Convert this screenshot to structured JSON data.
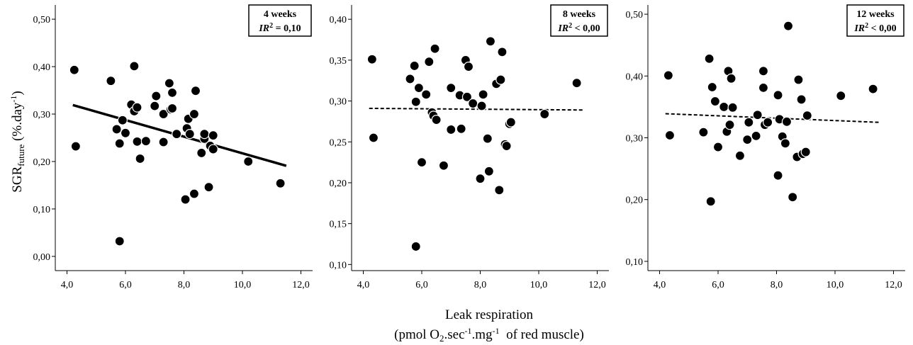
{
  "figure": {
    "ylabel_main": "SGR",
    "ylabel_sub": "future",
    "ylabel_unit_a": " (%.day",
    "ylabel_unit_sup": "-1",
    "ylabel_unit_b": ")",
    "xlabel_line1": "Leak respiration",
    "xlabel_line2_a": "(pmol O",
    "xlabel_line2_sub": "2",
    "xlabel_line2_b": ".sec",
    "xlabel_line2_sup1": "-1",
    "xlabel_line2_c": ".mg",
    "xlabel_line2_sup2": "-1",
    "xlabel_line2_d": "  of red muscle)"
  },
  "chart_data": [
    {
      "type": "scatter",
      "title": "4 weeks",
      "annotation_prefix": "IR",
      "annotation_sup": "2",
      "annotation_value": " = 0,10",
      "xlim": [
        3.6,
        12.4
      ],
      "ylim": [
        -0.03,
        0.53
      ],
      "xticks": [
        "4,0",
        "6,0",
        "8,0",
        "10,0",
        "12,0"
      ],
      "xtick_values": [
        4,
        6,
        8,
        10,
        12
      ],
      "yticks": [
        "0,00",
        "0,10",
        "0,20",
        "0,30",
        "0,40",
        "0,50"
      ],
      "ytick_values": [
        0,
        0.1,
        0.2,
        0.3,
        0.4,
        0.5
      ],
      "trendline": {
        "style": "solid",
        "x": [
          4.2,
          11.5
        ],
        "y": [
          0.319,
          0.191
        ]
      },
      "points": {
        "x": [
          4.25,
          4.3,
          5.5,
          5.7,
          5.8,
          5.8,
          5.9,
          6.0,
          6.2,
          6.3,
          6.3,
          6.4,
          6.4,
          6.5,
          6.7,
          7.0,
          7.05,
          7.3,
          7.3,
          7.5,
          7.55,
          7.6,
          7.6,
          7.75,
          8.05,
          8.1,
          8.15,
          8.2,
          8.35,
          8.35,
          8.4,
          8.6,
          8.7,
          8.7,
          8.85,
          8.9,
          9.0,
          9.0,
          10.2,
          11.3
        ],
        "y": [
          0.393,
          0.232,
          0.37,
          0.268,
          0.238,
          0.032,
          0.287,
          0.26,
          0.32,
          0.401,
          0.306,
          0.314,
          0.242,
          0.206,
          0.243,
          0.317,
          0.338,
          0.241,
          0.3,
          0.365,
          0.31,
          0.345,
          0.312,
          0.258,
          0.12,
          0.27,
          0.29,
          0.258,
          0.132,
          0.3,
          0.349,
          0.218,
          0.248,
          0.258,
          0.146,
          0.233,
          0.226,
          0.255,
          0.2,
          0.154
        ]
      }
    },
    {
      "type": "scatter",
      "title": "8 weeks",
      "annotation_prefix": "IR",
      "annotation_sup": "2",
      "annotation_value": " < 0,00",
      "xlim": [
        3.6,
        12.4
      ],
      "ylim": [
        0.0925,
        0.4175
      ],
      "xticks": [
        "4,0",
        "6,0",
        "8,0",
        "10,0",
        "12,0"
      ],
      "xtick_values": [
        4,
        6,
        8,
        10,
        12
      ],
      "yticks": [
        "0,10",
        "0,15",
        "0,20",
        "0,25",
        "0,30",
        "0,35",
        "0,40"
      ],
      "ytick_values": [
        0.1,
        0.15,
        0.2,
        0.25,
        0.3,
        0.35,
        0.4
      ],
      "trendline": {
        "style": "dashed",
        "x": [
          4.2,
          11.5
        ],
        "y": [
          0.291,
          0.289
        ]
      },
      "points": {
        "x": [
          4.3,
          4.35,
          5.6,
          5.75,
          5.8,
          5.8,
          5.9,
          6.0,
          6.15,
          6.25,
          6.35,
          6.4,
          6.45,
          6.5,
          6.75,
          7.0,
          7.0,
          7.3,
          7.35,
          7.5,
          7.55,
          7.6,
          7.75,
          8.0,
          8.05,
          8.1,
          8.25,
          8.3,
          8.35,
          8.55,
          8.65,
          8.7,
          8.75,
          8.85,
          8.9,
          9.0,
          9.05,
          10.2,
          11.3
        ],
        "y": [
          0.351,
          0.255,
          0.327,
          0.343,
          0.299,
          0.122,
          0.316,
          0.225,
          0.308,
          0.348,
          0.286,
          0.282,
          0.364,
          0.277,
          0.221,
          0.316,
          0.265,
          0.307,
          0.266,
          0.35,
          0.305,
          0.342,
          0.297,
          0.205,
          0.294,
          0.308,
          0.254,
          0.214,
          0.373,
          0.321,
          0.191,
          0.326,
          0.36,
          0.247,
          0.245,
          0.272,
          0.274,
          0.284,
          0.322
        ]
      }
    },
    {
      "type": "scatter",
      "title": "12 weeks",
      "annotation_prefix": "IR",
      "annotation_sup": "2",
      "annotation_value": " < 0,00",
      "xlim": [
        3.6,
        12.4
      ],
      "ylim": [
        0.085,
        0.515
      ],
      "xticks": [
        "4,0",
        "6,0",
        "8,0",
        "10,0",
        "12,0"
      ],
      "xtick_values": [
        4,
        6,
        8,
        10,
        12
      ],
      "yticks": [
        "0,10",
        "0,20",
        "0,30",
        "0,40",
        "0,50"
      ],
      "ytick_values": [
        0.1,
        0.2,
        0.3,
        0.4,
        0.5
      ],
      "trendline": {
        "style": "dashed",
        "x": [
          4.2,
          11.5
        ],
        "y": [
          0.339,
          0.325
        ]
      },
      "points": {
        "x": [
          4.3,
          4.35,
          5.5,
          5.7,
          5.75,
          5.8,
          5.9,
          6.0,
          6.2,
          6.3,
          6.35,
          6.4,
          6.45,
          6.5,
          6.75,
          7.0,
          7.05,
          7.3,
          7.35,
          7.55,
          7.55,
          7.6,
          7.7,
          8.05,
          8.05,
          8.1,
          8.2,
          8.3,
          8.35,
          8.4,
          8.55,
          8.7,
          8.75,
          8.85,
          8.9,
          9.0,
          9.05,
          10.2,
          11.3
        ],
        "y": [
          0.401,
          0.304,
          0.309,
          0.428,
          0.197,
          0.382,
          0.359,
          0.285,
          0.35,
          0.31,
          0.408,
          0.321,
          0.396,
          0.349,
          0.271,
          0.297,
          0.325,
          0.303,
          0.337,
          0.408,
          0.381,
          0.321,
          0.325,
          0.369,
          0.239,
          0.33,
          0.302,
          0.291,
          0.326,
          0.481,
          0.204,
          0.269,
          0.394,
          0.362,
          0.274,
          0.277,
          0.336,
          0.368,
          0.379
        ]
      }
    }
  ]
}
